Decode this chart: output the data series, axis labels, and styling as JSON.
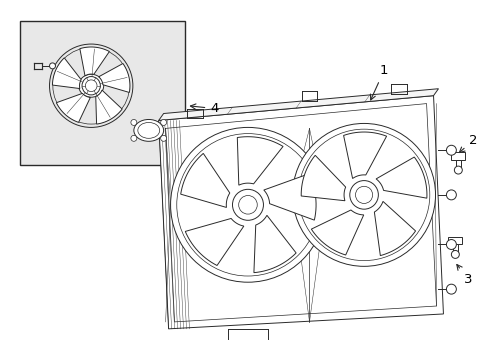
{
  "background_color": "#ffffff",
  "line_color": "#2a2a2a",
  "inset_bg": "#e8e8e8",
  "label_color": "#000000",
  "fig_width": 4.89,
  "fig_height": 3.6,
  "dpi": 100
}
